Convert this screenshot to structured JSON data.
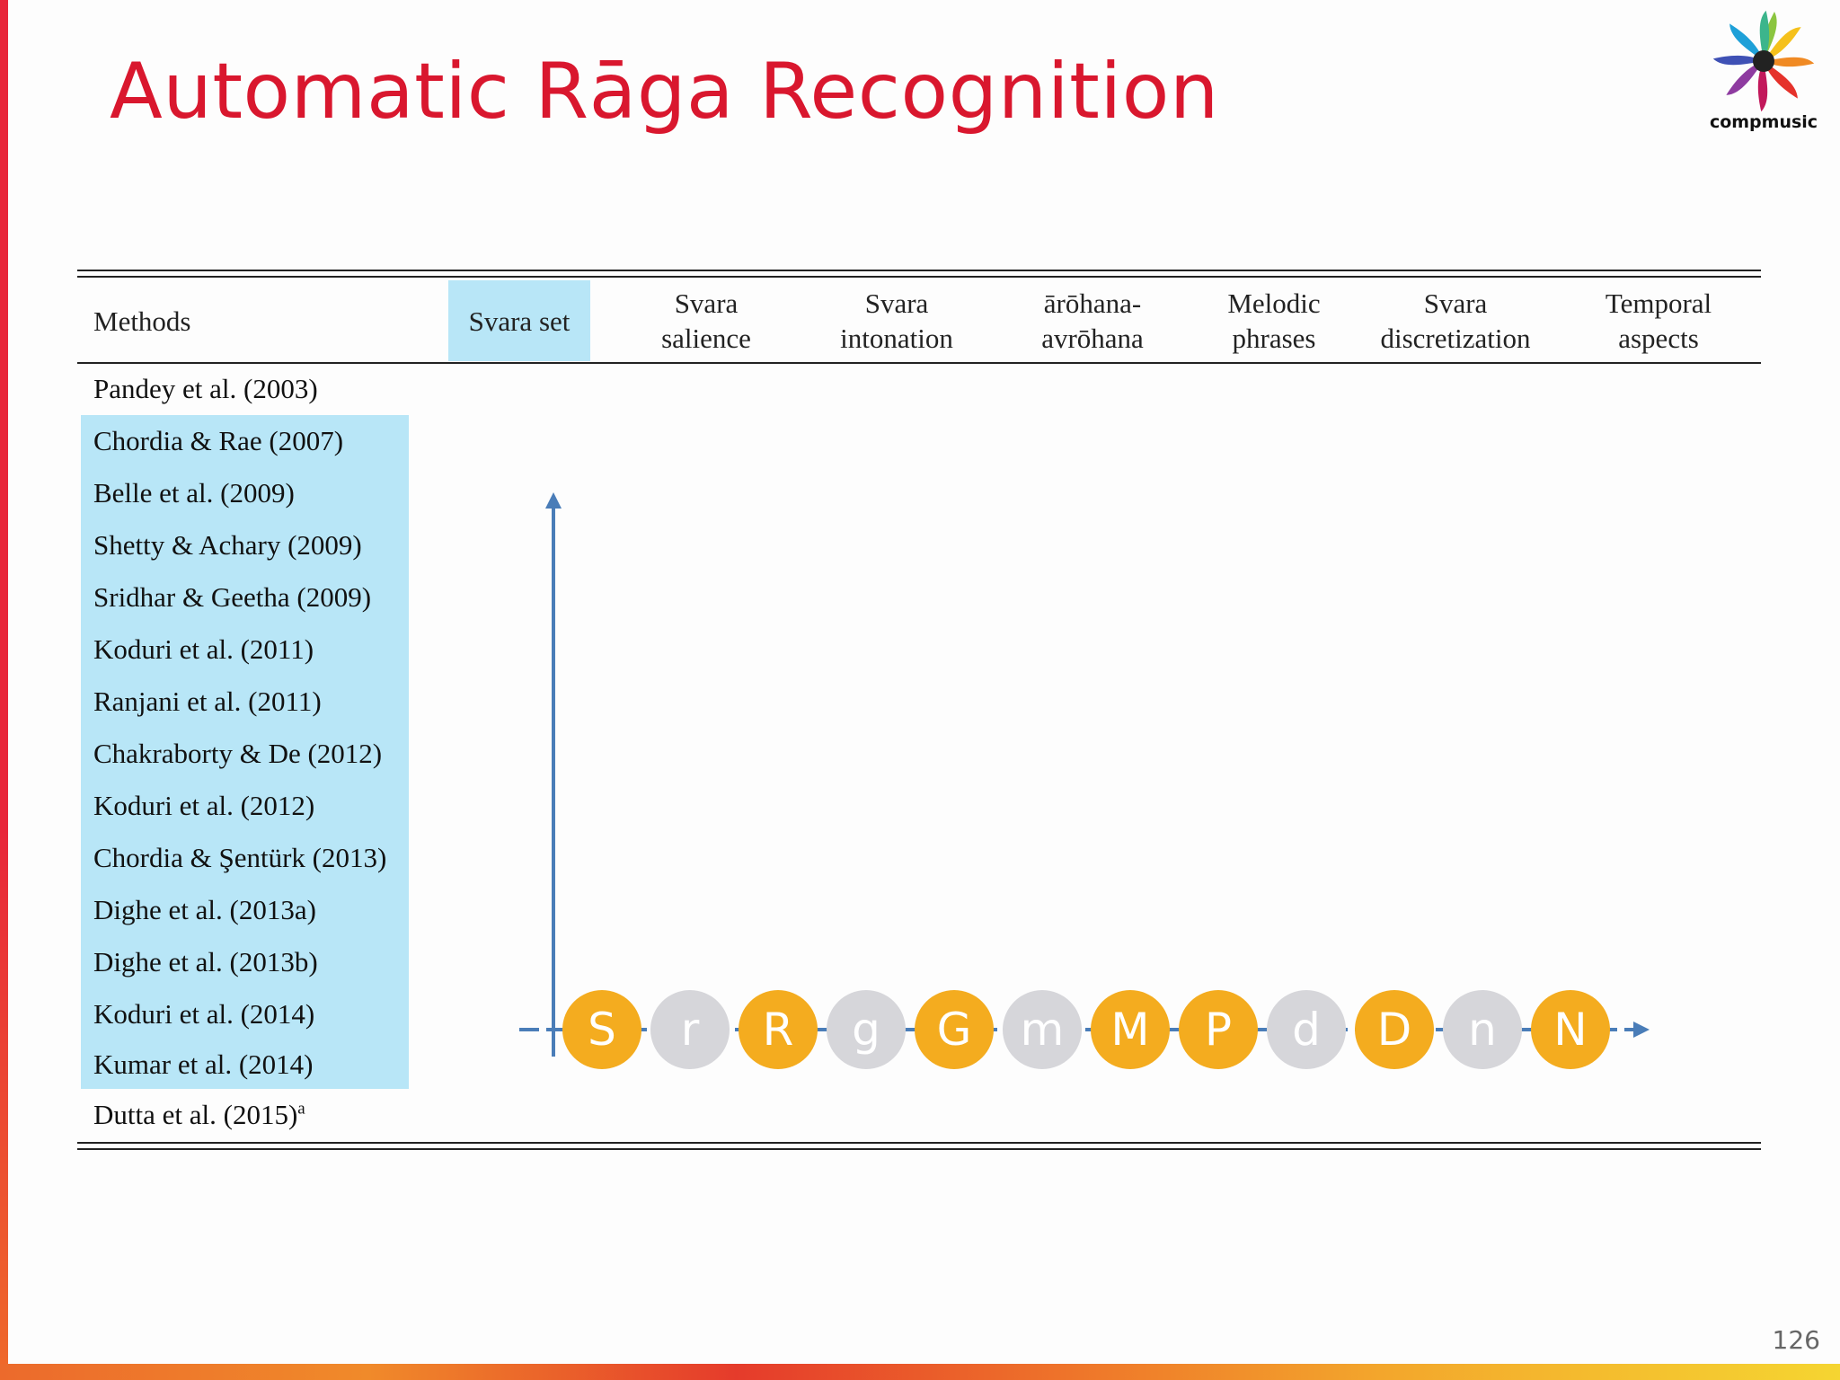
{
  "slide": {
    "title": "Automatic Rāga Recognition",
    "logo_text": "compmusic",
    "page_number": "126"
  },
  "table": {
    "headers": [
      {
        "line1": "Methods",
        "line2": ""
      },
      {
        "line1": "Svara set",
        "line2": ""
      },
      {
        "line1": "Svara",
        "line2": "salience"
      },
      {
        "line1": "Svara",
        "line2": "intonation"
      },
      {
        "line1": "ārōhana-",
        "line2": "avrōhana"
      },
      {
        "line1": "Melodic",
        "line2": "phrases"
      },
      {
        "line1": "Svara",
        "line2": "discretization"
      },
      {
        "line1": "Temporal",
        "line2": "aspects"
      }
    ],
    "highlighted_header": "Svara set",
    "methods": [
      {
        "name": "Pandey et al. (2003)",
        "sup": "",
        "highlighted": false
      },
      {
        "name": "Chordia & Rae (2007)",
        "sup": "",
        "highlighted": true
      },
      {
        "name": "Belle et al. (2009)",
        "sup": "",
        "highlighted": true
      },
      {
        "name": "Shetty & Achary (2009)",
        "sup": "",
        "highlighted": true
      },
      {
        "name": "Sridhar & Geetha (2009)",
        "sup": "",
        "highlighted": true
      },
      {
        "name": "Koduri et al. (2011)",
        "sup": "",
        "highlighted": true
      },
      {
        "name": "Ranjani et al. (2011)",
        "sup": "",
        "highlighted": true
      },
      {
        "name": "Chakraborty & De (2012)",
        "sup": "",
        "highlighted": true
      },
      {
        "name": "Koduri et al. (2012)",
        "sup": "",
        "highlighted": true
      },
      {
        "name": "Chordia & Şentürk (2013)",
        "sup": "",
        "highlighted": true
      },
      {
        "name": "Dighe et al. (2013a)",
        "sup": "",
        "highlighted": true
      },
      {
        "name": "Dighe et al. (2013b)",
        "sup": "",
        "highlighted": true
      },
      {
        "name": "Koduri et al. (2014)",
        "sup": "",
        "highlighted": true
      },
      {
        "name": "Kumar et al. (2014)",
        "sup": "",
        "highlighted": true
      },
      {
        "name": "Dutta et al. (2015)",
        "sup": "a",
        "highlighted": false
      }
    ]
  },
  "svara_diagram": {
    "svaras": [
      {
        "label": "S",
        "active": true
      },
      {
        "label": "r",
        "active": false
      },
      {
        "label": "R",
        "active": true
      },
      {
        "label": "g",
        "active": false
      },
      {
        "label": "G",
        "active": true
      },
      {
        "label": "m",
        "active": false
      },
      {
        "label": "M",
        "active": true
      },
      {
        "label": "P",
        "active": true
      },
      {
        "label": "d",
        "active": false
      },
      {
        "label": "D",
        "active": true
      },
      {
        "label": "n",
        "active": false
      },
      {
        "label": "N",
        "active": true
      }
    ],
    "active_color": "#f4ac1f",
    "inactive_color": "#d6d6da",
    "axis_color": "#4a7db8"
  }
}
